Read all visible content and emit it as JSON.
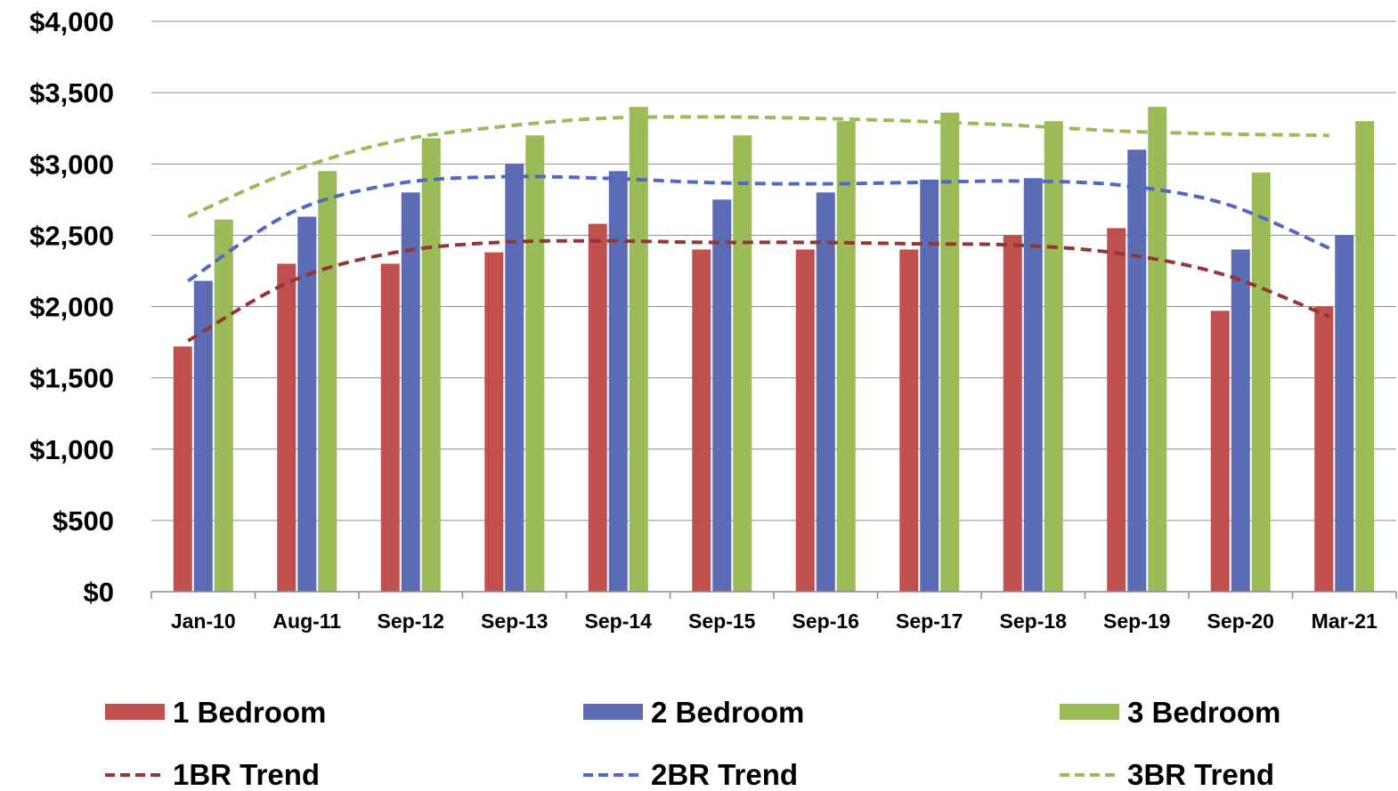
{
  "chart_data": {
    "type": "bar",
    "title": "",
    "xlabel": "",
    "ylabel": "",
    "ylim": [
      0,
      4000
    ],
    "yticks": [
      0,
      500,
      1000,
      1500,
      2000,
      2500,
      3000,
      3500,
      4000
    ],
    "ytick_labels": [
      "$0",
      "$500",
      "$1,000",
      "$1,500",
      "$2,000",
      "$2,500",
      "$3,000",
      "$3,500",
      "$4,000"
    ],
    "grid": true,
    "legend_position": "bottom",
    "categories": [
      "Jan-10",
      "Aug-11",
      "Sep-12",
      "Sep-13",
      "Sep-14",
      "Sep-15",
      "Sep-16",
      "Sep-17",
      "Sep-18",
      "Sep-19",
      "Sep-20",
      "Mar-21"
    ],
    "series": [
      {
        "name": "1 Bedroom",
        "color": "#c0504d",
        "values": [
          1720,
          2300,
          2300,
          2380,
          2580,
          2400,
          2400,
          2400,
          2500,
          2550,
          1970,
          2000
        ]
      },
      {
        "name": "2 Bedroom",
        "color": "#5b6bb4",
        "values": [
          2180,
          2630,
          2800,
          3000,
          2950,
          2750,
          2800,
          2890,
          2900,
          3100,
          2400,
          2500
        ]
      },
      {
        "name": "3 Bedroom",
        "color": "#9bbb59",
        "values": [
          2610,
          2950,
          3180,
          3200,
          3400,
          3200,
          3300,
          3360,
          3300,
          3400,
          2940,
          3300
        ]
      }
    ],
    "trends": [
      {
        "name": "1BR Trend",
        "color": "#943634",
        "values": [
          1760,
          2180,
          2380,
          2450,
          2460,
          2450,
          2450,
          2440,
          2430,
          2370,
          2220,
          1930
        ]
      },
      {
        "name": "2BR Trend",
        "color": "#4f6ac0",
        "values": [
          2180,
          2660,
          2860,
          2910,
          2900,
          2870,
          2860,
          2870,
          2880,
          2850,
          2720,
          2410
        ]
      },
      {
        "name": "3BR Trend",
        "color": "#9bbb59",
        "values": [
          2630,
          2950,
          3160,
          3260,
          3320,
          3330,
          3320,
          3300,
          3270,
          3230,
          3210,
          3200
        ]
      }
    ]
  }
}
